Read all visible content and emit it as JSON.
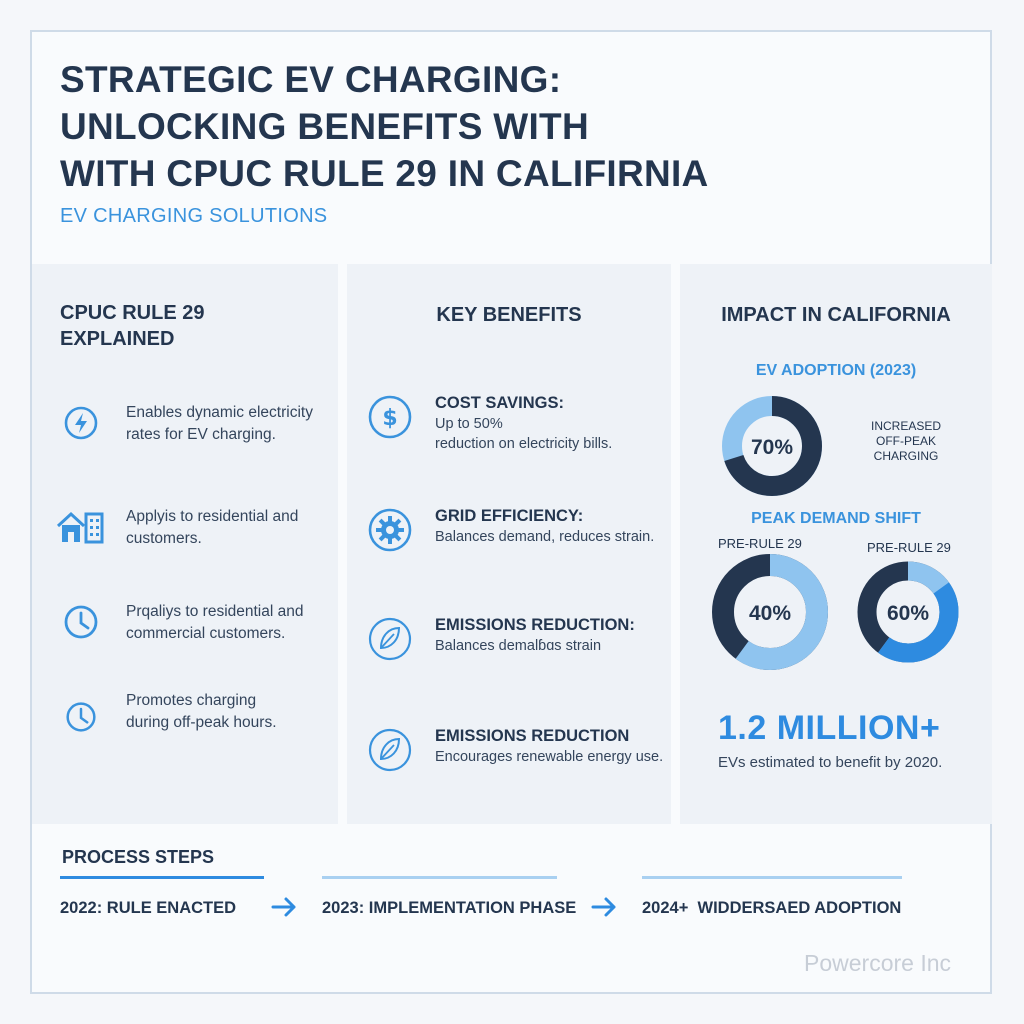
{
  "header": {
    "title_lines": [
      "STRATEGIC EV CHARGING:",
      "UNLOCKING BENEFITS WITH",
      "WITH CPUC RULE 29 IN CALIFIRNIA"
    ],
    "subtitle": "EV CHARGING SOLUTIONS"
  },
  "rule_panel": {
    "title_line1": "CPUC RULE 29",
    "title_line2": "EXPLAINED",
    "items": [
      {
        "icon": "lightning-bolt-icon",
        "line1": "Enables dynamic electricity",
        "line2": "rates for EV charging."
      },
      {
        "icon": "house-building-icon",
        "line1": "Applyis to residential and",
        "line2": "customers."
      },
      {
        "icon": "clock-icon",
        "line1": "Prqaliys to residential and",
        "line2": "commercial customers."
      },
      {
        "icon": "clock-icon",
        "line1": "Promotes charging",
        "line2": "during off-peak hours."
      }
    ]
  },
  "benefits_panel": {
    "title": "KEY BENEFITS",
    "items": [
      {
        "icon": "dollar-icon",
        "title": "COST SAVINGS:",
        "line1": "Up to 50%",
        "line2": "reduction on electricity bills."
      },
      {
        "icon": "gear-icon",
        "title": "GRID EFFICIENCY:",
        "line1": "Balances demand, reduces strain.",
        "line2": ""
      },
      {
        "icon": "leaf-icon",
        "title": "EMISSIONS REDUCTION:",
        "line1": "Balances demalɓɑs strain",
        "line2": ""
      },
      {
        "icon": "leaf-icon",
        "title": "EMISSIONS REDUCTION",
        "line1": "Encourages renewable energy use.",
        "line2": ""
      }
    ]
  },
  "impact_panel": {
    "title": "IMPACT IN CALIFORNIA",
    "adoption_heading": "EV ADOPTION (2023)",
    "adoption_note_line1": "INCREASED",
    "adoption_note_line2": "OFF-PEAK CHARGING",
    "peak_heading": "PEAK DEMAND SHIFT",
    "stat_value": "1.2 MILLION+",
    "stat_desc": "EVs estimated to benefit by 2020."
  },
  "chart_data": [
    {
      "type": "pie",
      "title": "EV ADOPTION (2023)",
      "center_label": "70%",
      "value_percent": 70
    },
    {
      "type": "pie",
      "title": "PRE-RULE 29",
      "center_label": "40%",
      "value_percent": 40
    },
    {
      "type": "pie",
      "title": "PRE-RULE 29",
      "center_label": "60%",
      "value_percent": 60
    }
  ],
  "process": {
    "title": "PROCESS STEPS",
    "steps": [
      "2022: RULE ENACTED",
      "2023: IMPLEMENTATION PHASE",
      "2024+  WIDDERSAED ADOPTION"
    ]
  },
  "brand": "Powercore Inc",
  "colors": {
    "navy": "#24364f",
    "accent_blue": "#2e8be0",
    "light_blue": "#8fc4ef",
    "icon_blue": "#3a93dd"
  }
}
